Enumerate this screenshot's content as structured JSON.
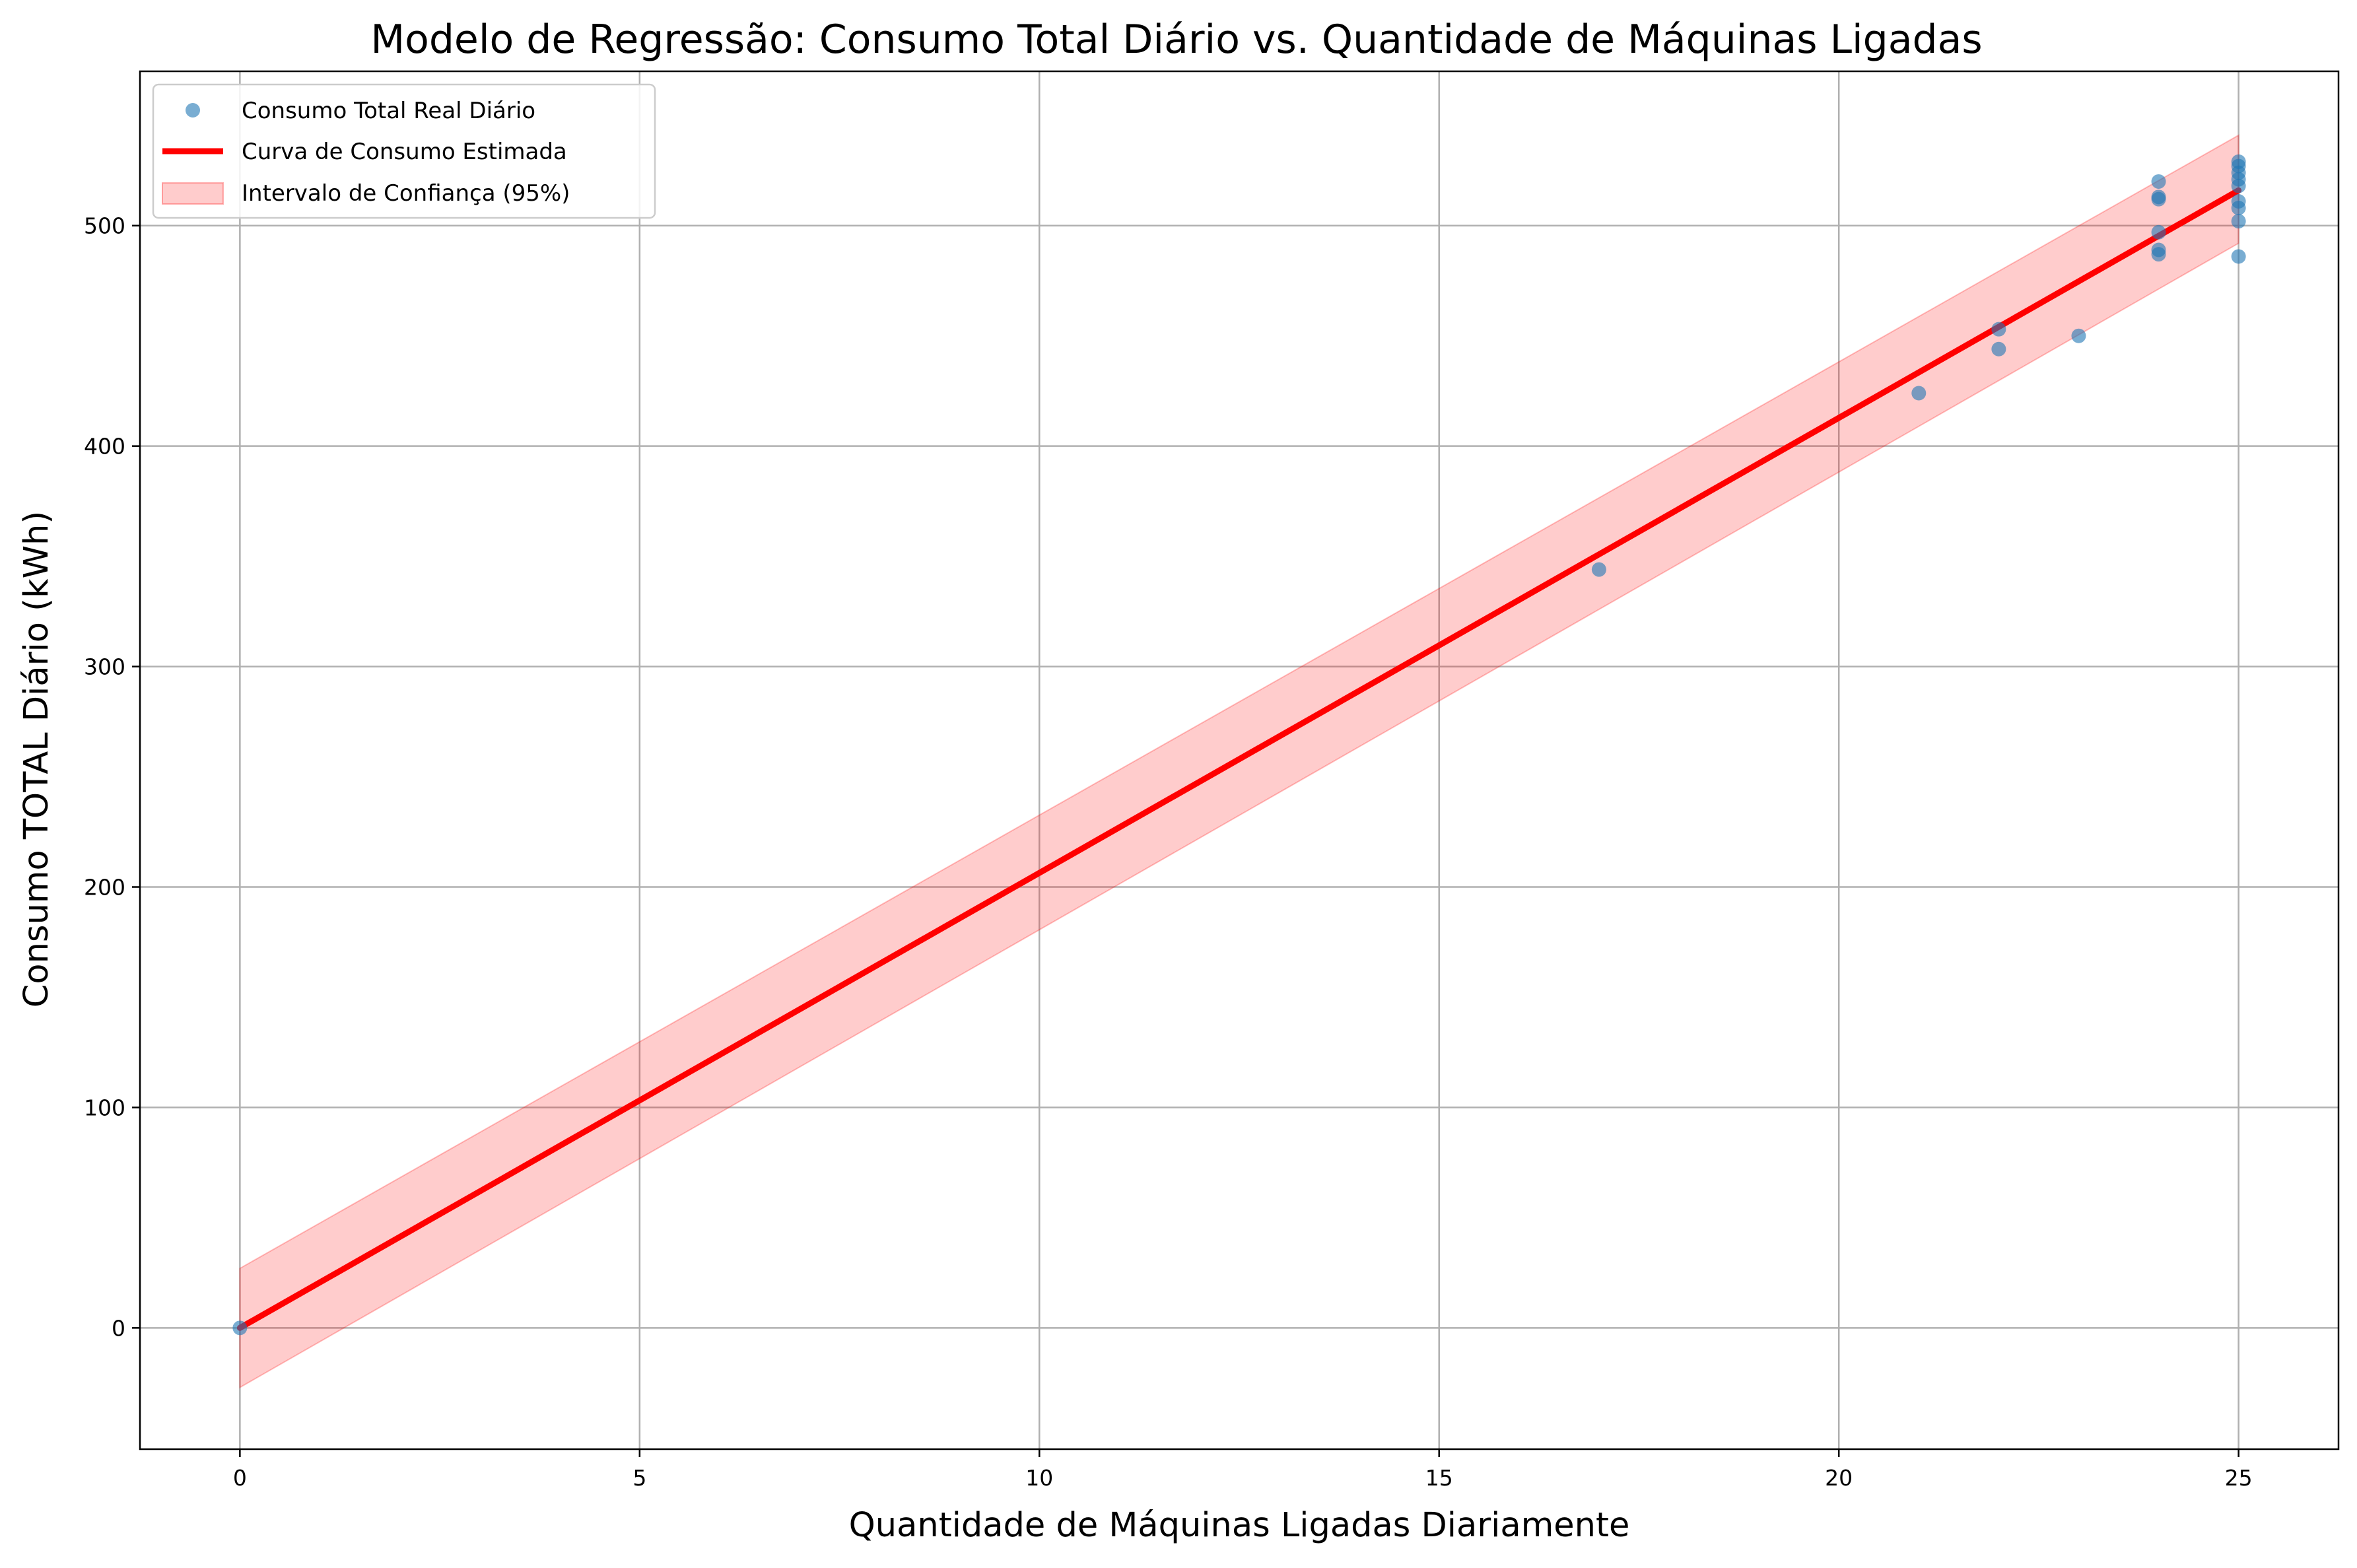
{
  "chart_data": {
    "type": "scatter",
    "title": "Modelo de Regressão: Consumo Total Diário vs. Quantidade de Máquinas Ligadas",
    "xlabel": "Quantidade de Máquinas Ligadas Diariamente",
    "ylabel": "Consumo TOTAL Diário (kWh)",
    "xlim": [
      -1.25,
      26.25
    ],
    "ylim": [
      -55,
      570
    ],
    "xticks": [
      0,
      5,
      10,
      15,
      20,
      25
    ],
    "yticks": [
      0,
      100,
      200,
      300,
      400,
      500
    ],
    "grid": true,
    "legend_position": "upper-left",
    "series": [
      {
        "name": "Consumo Total Real Diário",
        "kind": "scatter",
        "color": "#1f77b4",
        "points": [
          {
            "x": 0,
            "y": 0
          },
          {
            "x": 17,
            "y": 344
          },
          {
            "x": 21,
            "y": 424
          },
          {
            "x": 22,
            "y": 444
          },
          {
            "x": 22,
            "y": 453
          },
          {
            "x": 23,
            "y": 450
          },
          {
            "x": 24,
            "y": 487
          },
          {
            "x": 24,
            "y": 489
          },
          {
            "x": 24,
            "y": 497
          },
          {
            "x": 24,
            "y": 512
          },
          {
            "x": 24,
            "y": 513
          },
          {
            "x": 24,
            "y": 520
          },
          {
            "x": 25,
            "y": 486
          },
          {
            "x": 25,
            "y": 502
          },
          {
            "x": 25,
            "y": 508
          },
          {
            "x": 25,
            "y": 511
          },
          {
            "x": 25,
            "y": 518
          },
          {
            "x": 25,
            "y": 521
          },
          {
            "x": 25,
            "y": 524
          },
          {
            "x": 25,
            "y": 527
          },
          {
            "x": 25,
            "y": 529
          }
        ]
      },
      {
        "name": "Curva de Consumo Estimada",
        "kind": "line",
        "color": "#ff0000",
        "points": [
          {
            "x": 0,
            "y": 0
          },
          {
            "x": 25,
            "y": 516
          }
        ]
      },
      {
        "name": "Intervalo de Confiança (95%)",
        "kind": "band",
        "color": "#ff0000",
        "x": [
          0,
          25
        ],
        "lower": [
          -27,
          492
        ],
        "upper": [
          27,
          541
        ]
      }
    ]
  }
}
